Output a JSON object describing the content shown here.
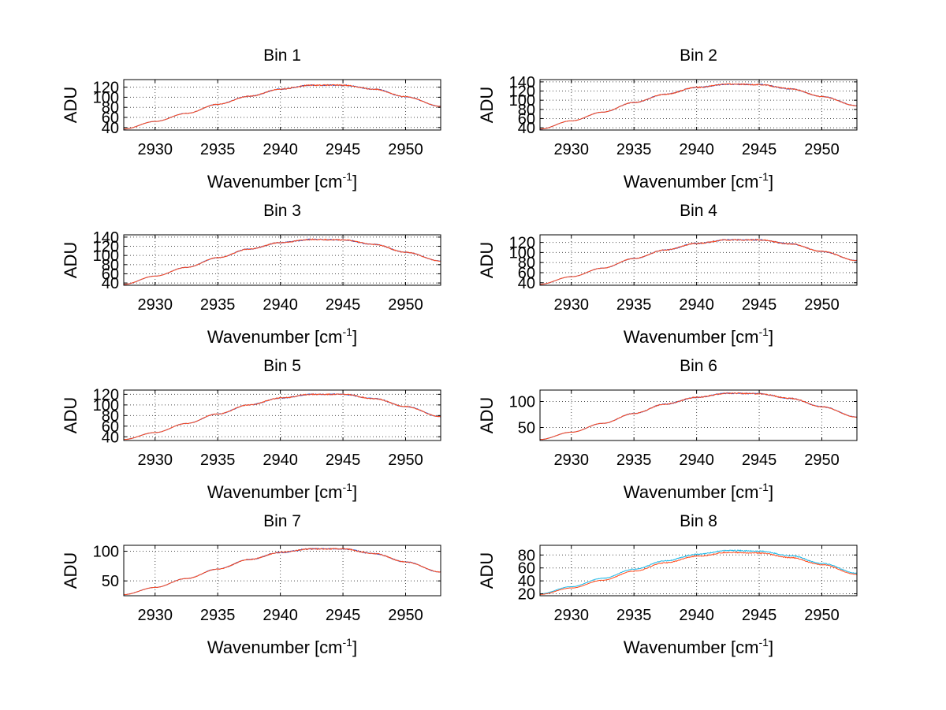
{
  "chart_data": [
    {
      "type": "line",
      "title": "Bin 1",
      "xlabel_base": "Wavenumber [cm",
      "xlabel_sup": "-1",
      "xlabel_close": "]",
      "ylabel": "ADU",
      "xlim": [
        2927.5,
        2952.8
      ],
      "ylim": [
        35,
        135
      ],
      "xticks": [
        2930,
        2935,
        2940,
        2945,
        2950
      ],
      "yticks": [
        40,
        60,
        80,
        100,
        120
      ],
      "yticklabels": [
        "40",
        "60",
        "80",
        "100",
        "120"
      ],
      "series": [
        {
          "name": "blue",
          "color": "#1f4fd8",
          "x": [
            2927.5,
            2930,
            2932.5,
            2935,
            2937.5,
            2940,
            2942.5,
            2945,
            2947.5,
            2950,
            2952.8
          ],
          "values": [
            37,
            52,
            68,
            86,
            102,
            116,
            124,
            124,
            116,
            101,
            82
          ]
        },
        {
          "name": "orange",
          "color": "#ff4a1c",
          "x": [
            2927.5,
            2930,
            2932.5,
            2935,
            2937.5,
            2940,
            2942.5,
            2945,
            2947.5,
            2950,
            2952.8
          ],
          "values": [
            37,
            52,
            68,
            86,
            102,
            116,
            124,
            124,
            116,
            101,
            82
          ]
        }
      ]
    },
    {
      "type": "line",
      "title": "Bin 2",
      "xlabel_base": "Wavenumber [cm",
      "xlabel_sup": "-1",
      "xlabel_close": "]",
      "ylabel": "ADU",
      "xlim": [
        2927.5,
        2952.8
      ],
      "ylim": [
        35,
        145
      ],
      "xticks": [
        2930,
        2935,
        2940,
        2945,
        2950
      ],
      "yticks": [
        40,
        60,
        80,
        100,
        120,
        140
      ],
      "yticklabels": [
        "40",
        "60",
        "80",
        "100",
        "120",
        "140"
      ],
      "series": [
        {
          "name": "blue",
          "color": "#1f4fd8",
          "x": [
            2927.5,
            2930,
            2932.5,
            2935,
            2937.5,
            2940,
            2942.5,
            2945,
            2947.5,
            2950,
            2952.8
          ],
          "values": [
            37,
            55,
            74,
            95,
            113,
            128,
            135,
            134,
            125,
            108,
            88
          ]
        },
        {
          "name": "orange",
          "color": "#ff4a1c",
          "x": [
            2927.5,
            2930,
            2932.5,
            2935,
            2937.5,
            2940,
            2942.5,
            2945,
            2947.5,
            2950,
            2952.8
          ],
          "values": [
            37,
            55,
            74,
            95,
            113,
            128,
            135,
            134,
            125,
            108,
            88
          ]
        }
      ]
    },
    {
      "type": "line",
      "title": "Bin 3",
      "xlabel_base": "Wavenumber [cm",
      "xlabel_sup": "-1",
      "xlabel_close": "]",
      "ylabel": "ADU",
      "xlim": [
        2927.5,
        2952.8
      ],
      "ylim": [
        35,
        145
      ],
      "xticks": [
        2930,
        2935,
        2940,
        2945,
        2950
      ],
      "yticks": [
        40,
        60,
        80,
        100,
        120,
        140
      ],
      "yticklabels": [
        "40",
        "60",
        "80",
        "100",
        "120",
        "140"
      ],
      "series": [
        {
          "name": "blue",
          "color": "#1f4fd8",
          "x": [
            2927.5,
            2930,
            2932.5,
            2935,
            2937.5,
            2940,
            2942.5,
            2945,
            2947.5,
            2950,
            2952.8
          ],
          "values": [
            37,
            55,
            74,
            95,
            114,
            128,
            135,
            134,
            124,
            107,
            88
          ]
        },
        {
          "name": "orange",
          "color": "#ff4a1c",
          "x": [
            2927.5,
            2930,
            2932.5,
            2935,
            2937.5,
            2940,
            2942.5,
            2945,
            2947.5,
            2950,
            2952.8
          ],
          "values": [
            37,
            55,
            74,
            95,
            114,
            128,
            135,
            134,
            124,
            107,
            88
          ]
        }
      ]
    },
    {
      "type": "line",
      "title": "Bin 4",
      "xlabel_base": "Wavenumber [cm",
      "xlabel_sup": "-1",
      "xlabel_close": "]",
      "ylabel": "ADU",
      "xlim": [
        2927.5,
        2952.8
      ],
      "ylim": [
        35,
        135
      ],
      "xticks": [
        2930,
        2935,
        2940,
        2945,
        2950
      ],
      "yticks": [
        40,
        60,
        80,
        100,
        120
      ],
      "yticklabels": [
        "40",
        "60",
        "80",
        "100",
        "120"
      ],
      "series": [
        {
          "name": "blue",
          "color": "#1f4fd8",
          "x": [
            2927.5,
            2930,
            2932.5,
            2935,
            2937.5,
            2940,
            2942.5,
            2945,
            2947.5,
            2950,
            2952.8
          ],
          "values": [
            37,
            52,
            69,
            88,
            105,
            118,
            125,
            125,
            117,
            102,
            84
          ]
        },
        {
          "name": "orange",
          "color": "#ff4a1c",
          "x": [
            2927.5,
            2930,
            2932.5,
            2935,
            2937.5,
            2940,
            2942.5,
            2945,
            2947.5,
            2950,
            2952.8
          ],
          "values": [
            37,
            52,
            69,
            88,
            105,
            118,
            125,
            125,
            117,
            102,
            84
          ]
        }
      ]
    },
    {
      "type": "line",
      "title": "Bin 5",
      "xlabel_base": "Wavenumber [cm",
      "xlabel_sup": "-1",
      "xlabel_close": "]",
      "ylabel": "ADU",
      "xlim": [
        2927.5,
        2952.8
      ],
      "ylim": [
        33,
        128
      ],
      "xticks": [
        2930,
        2935,
        2940,
        2945,
        2950
      ],
      "yticks": [
        40,
        60,
        80,
        100,
        120
      ],
      "yticklabels": [
        "40",
        "60",
        "80",
        "100",
        "120"
      ],
      "series": [
        {
          "name": "blue",
          "color": "#1f4fd8",
          "x": [
            2927.5,
            2930,
            2932.5,
            2935,
            2937.5,
            2940,
            2942.5,
            2945,
            2947.5,
            2950,
            2952.8
          ],
          "values": [
            35,
            48,
            65,
            83,
            100,
            113,
            120,
            120,
            112,
            97,
            78
          ]
        },
        {
          "name": "orange",
          "color": "#ff4a1c",
          "x": [
            2927.5,
            2930,
            2932.5,
            2935,
            2937.5,
            2940,
            2942.5,
            2945,
            2947.5,
            2950,
            2952.8
          ],
          "values": [
            35,
            48,
            65,
            83,
            100,
            113,
            120,
            120,
            112,
            97,
            78
          ]
        }
      ]
    },
    {
      "type": "line",
      "title": "Bin 6",
      "xlabel_base": "Wavenumber [cm",
      "xlabel_sup": "-1",
      "xlabel_close": "]",
      "ylabel": "ADU",
      "xlim": [
        2927.5,
        2952.8
      ],
      "ylim": [
        25,
        122
      ],
      "xticks": [
        2930,
        2935,
        2940,
        2945,
        2950
      ],
      "yticks": [
        50,
        100
      ],
      "yticklabels": [
        "50",
        "100"
      ],
      "series": [
        {
          "name": "blue",
          "color": "#1f4fd8",
          "x": [
            2927.5,
            2930,
            2932.5,
            2935,
            2937.5,
            2940,
            2942.5,
            2945,
            2947.5,
            2950,
            2952.8
          ],
          "values": [
            27,
            41,
            58,
            77,
            95,
            108,
            116,
            115,
            106,
            90,
            70
          ]
        },
        {
          "name": "orange",
          "color": "#ff4a1c",
          "x": [
            2927.5,
            2930,
            2932.5,
            2935,
            2937.5,
            2940,
            2942.5,
            2945,
            2947.5,
            2950,
            2952.8
          ],
          "values": [
            27,
            41,
            58,
            77,
            95,
            108,
            116,
            115,
            106,
            90,
            70
          ]
        }
      ]
    },
    {
      "type": "line",
      "title": "Bin 7",
      "xlabel_base": "Wavenumber [cm",
      "xlabel_sup": "-1",
      "xlabel_close": "]",
      "ylabel": "ADU",
      "xlim": [
        2927.5,
        2952.8
      ],
      "ylim": [
        25,
        110
      ],
      "xticks": [
        2930,
        2935,
        2940,
        2945,
        2950
      ],
      "yticks": [
        50,
        100
      ],
      "yticklabels": [
        "50",
        "100"
      ],
      "series": [
        {
          "name": "blue",
          "color": "#1f4fd8",
          "x": [
            2927.5,
            2930,
            2932.5,
            2935,
            2937.5,
            2940,
            2942.5,
            2945,
            2947.5,
            2950,
            2952.8
          ],
          "values": [
            27,
            39,
            54,
            70,
            86,
            98,
            104,
            104,
            96,
            82,
            65
          ]
        },
        {
          "name": "orange",
          "color": "#ff4a1c",
          "x": [
            2927.5,
            2930,
            2932.5,
            2935,
            2937.5,
            2940,
            2942.5,
            2945,
            2947.5,
            2950,
            2952.8
          ],
          "values": [
            27,
            39,
            54,
            70,
            86,
            98,
            104,
            104,
            96,
            82,
            65
          ]
        }
      ]
    },
    {
      "type": "line",
      "title": "Bin 8",
      "xlabel_base": "Wavenumber [cm",
      "xlabel_sup": "-1",
      "xlabel_close": "]",
      "ylabel": "ADU",
      "xlim": [
        2927.5,
        2952.8
      ],
      "ylim": [
        17,
        95
      ],
      "xticks": [
        2930,
        2935,
        2940,
        2945,
        2950
      ],
      "yticks": [
        20,
        40,
        60,
        80
      ],
      "yticklabels": [
        "20",
        "40",
        "60",
        "80"
      ],
      "series": [
        {
          "name": "cyan",
          "color": "#18b6e6",
          "x": [
            2927.5,
            2930,
            2932.5,
            2935,
            2937.5,
            2940,
            2942.5,
            2945,
            2947.5,
            2950,
            2952.8
          ],
          "values": [
            20,
            31,
            44,
            58,
            71,
            81,
            87,
            86,
            79,
            67,
            52
          ]
        },
        {
          "name": "orange",
          "color": "#ff4a1c",
          "x": [
            2927.5,
            2930,
            2932.5,
            2935,
            2937.5,
            2940,
            2942.5,
            2945,
            2947.5,
            2950,
            2952.8
          ],
          "values": [
            19,
            29,
            41,
            55,
            68,
            78,
            84,
            83,
            76,
            65,
            50
          ]
        }
      ]
    }
  ]
}
